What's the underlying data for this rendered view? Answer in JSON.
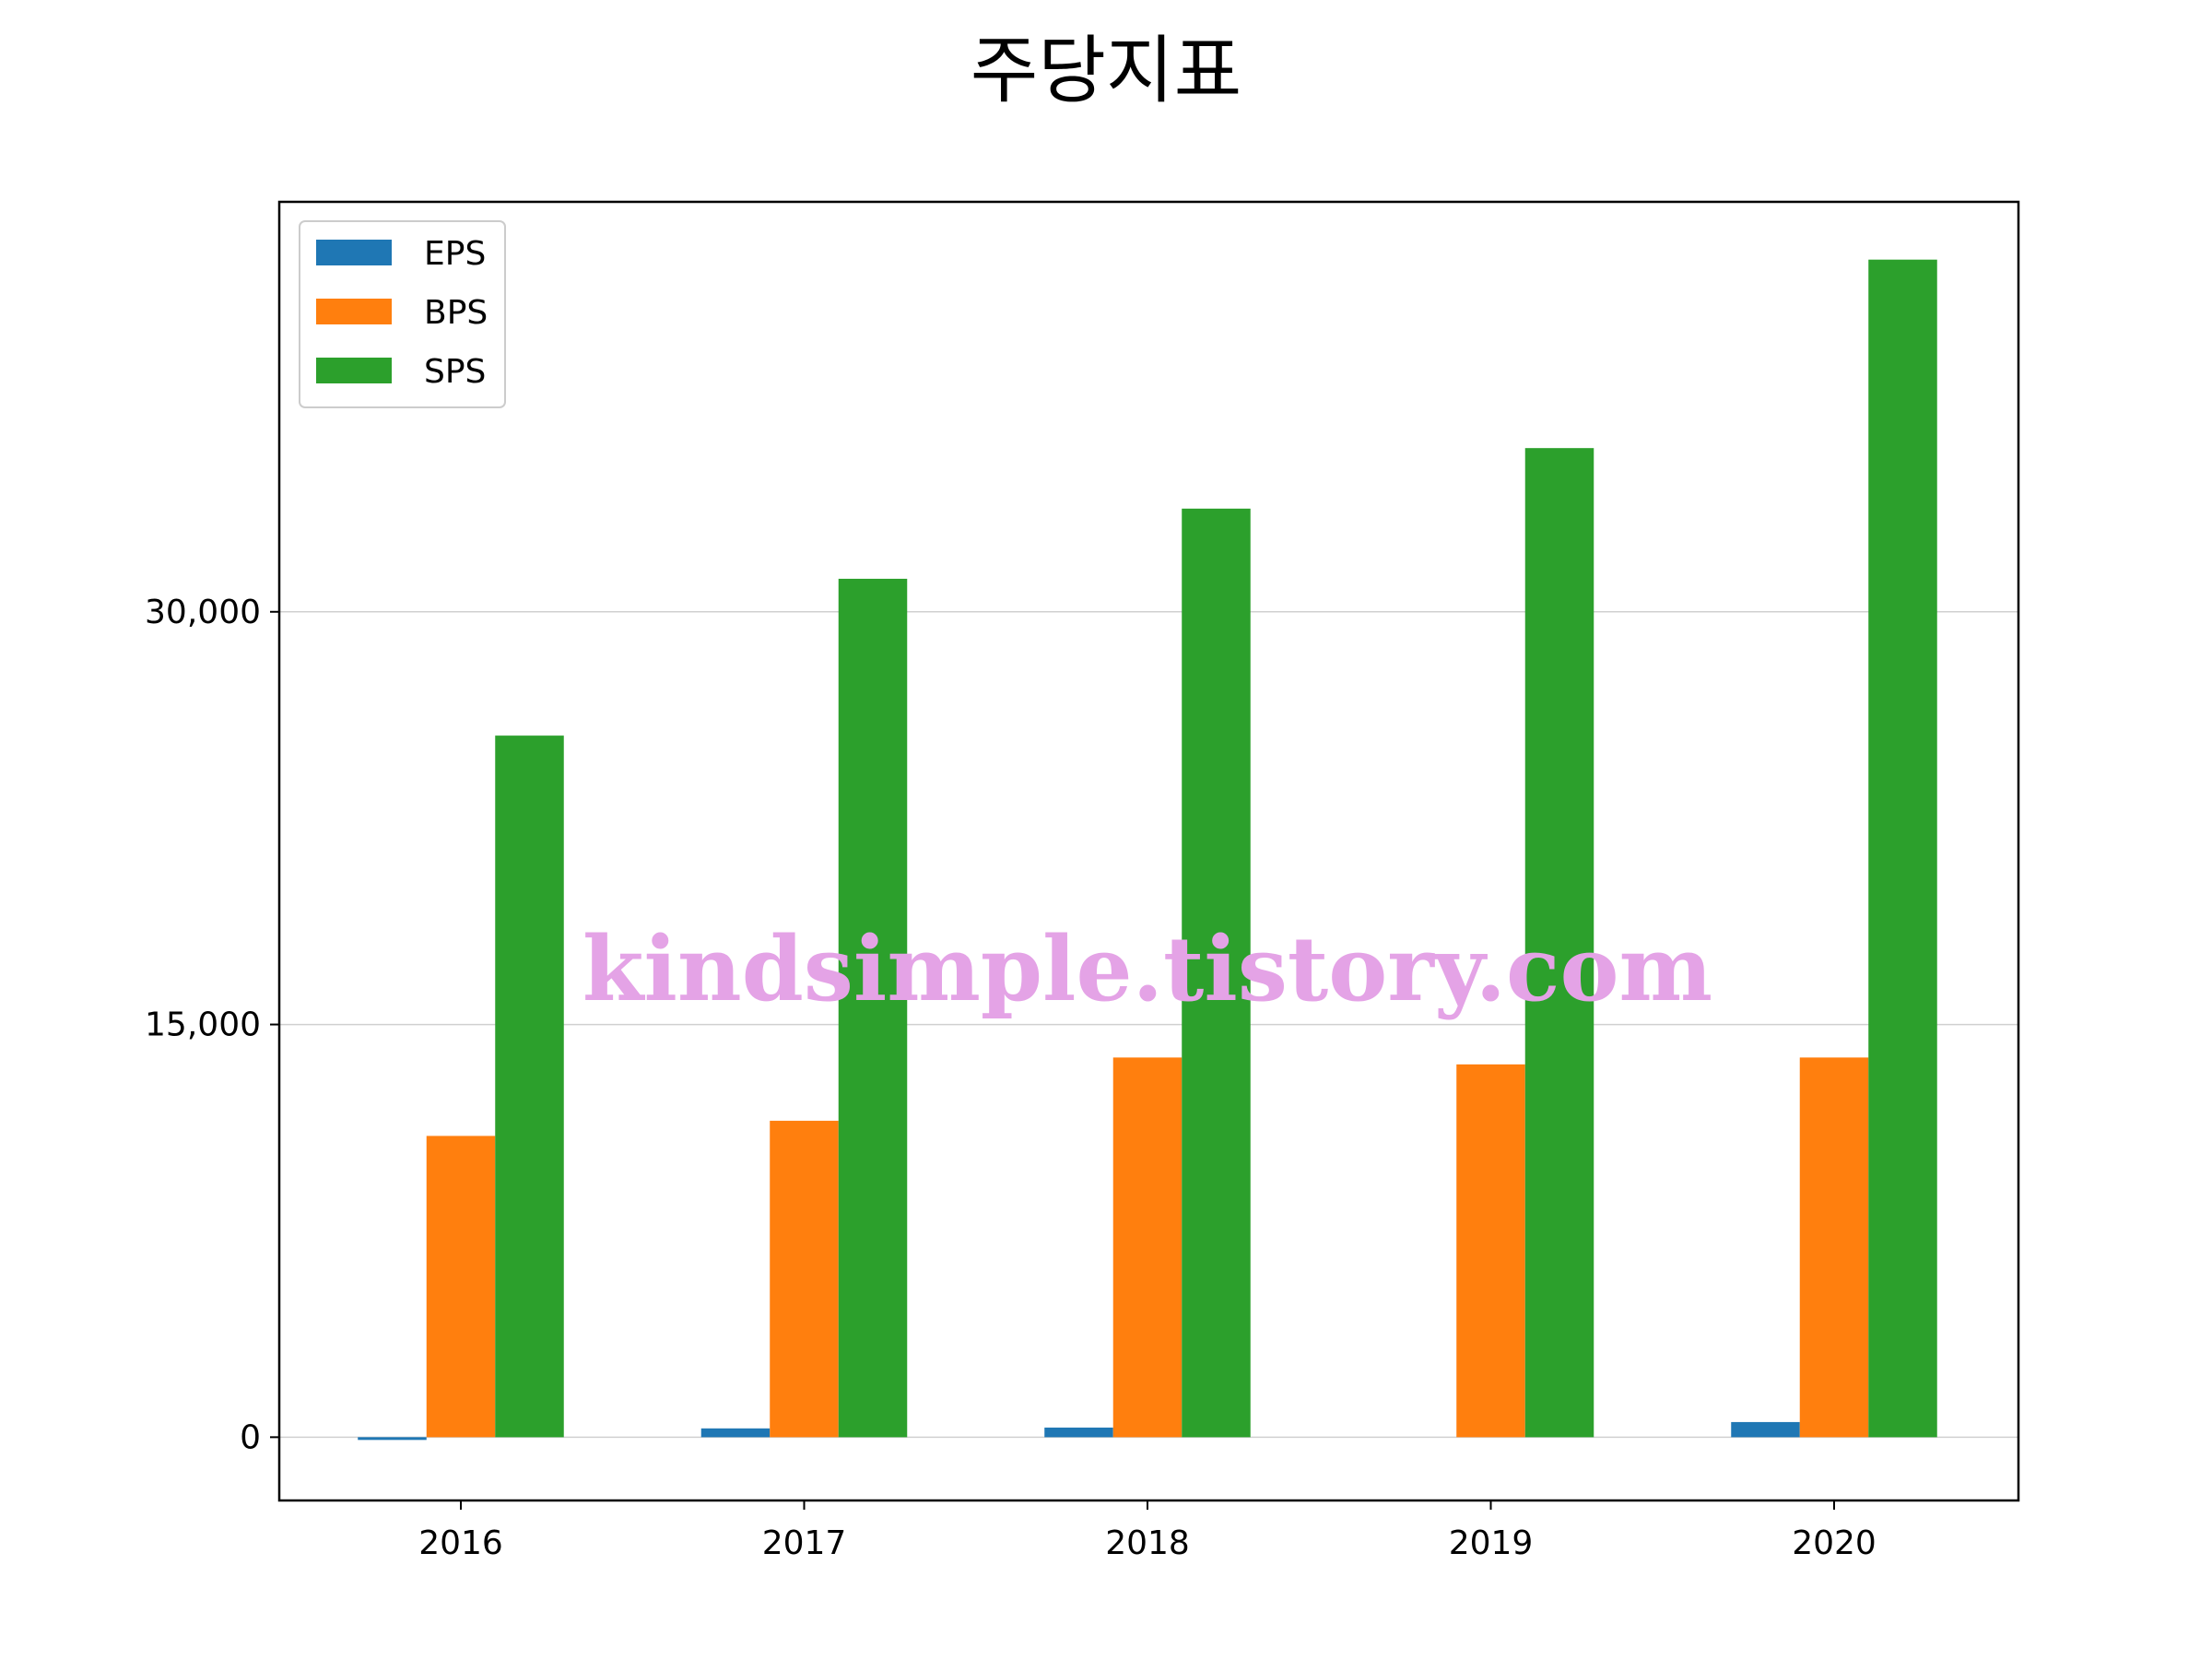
{
  "chart_data": {
    "type": "bar",
    "title": "주당지표",
    "xlabel": "",
    "ylabel": "",
    "categories": [
      "2016",
      "2017",
      "2018",
      "2019",
      "2020"
    ],
    "series": [
      {
        "name": "EPS",
        "color": "#1f77b4",
        "values": [
          -100,
          320,
          350,
          0,
          550
        ]
      },
      {
        "name": "BPS",
        "color": "#ff7f0e",
        "values": [
          10950,
          11500,
          13800,
          13550,
          13800
        ]
      },
      {
        "name": "SPS",
        "color": "#2ca02c",
        "values": [
          25500,
          31200,
          33750,
          35950,
          42800
        ]
      }
    ],
    "yticks": [
      0,
      15000,
      30000
    ],
    "ytick_labels": [
      "0",
      "15,000",
      "30,000"
    ],
    "ylim": [
      -2300,
      44900
    ],
    "grid": "y",
    "legend": "top-left"
  },
  "watermark": "kindsimple.tistory.com"
}
